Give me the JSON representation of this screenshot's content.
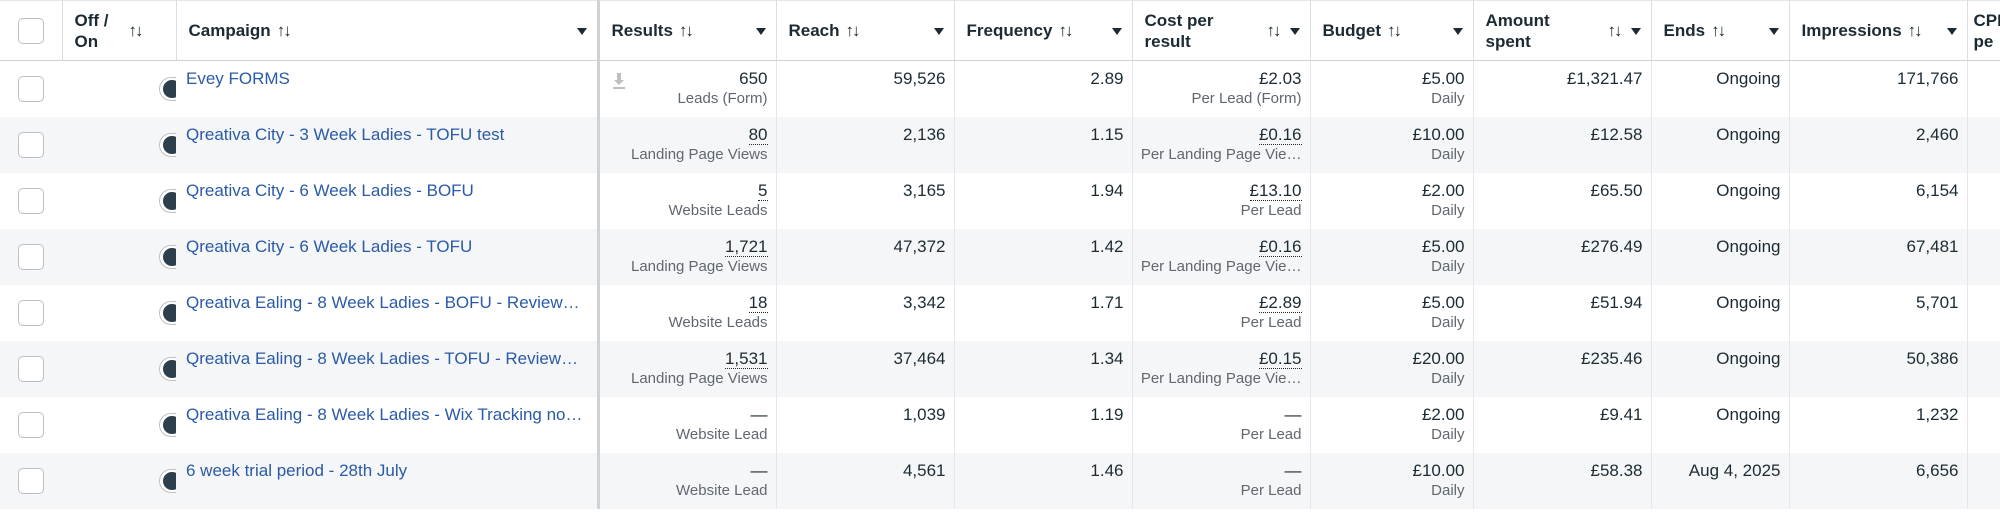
{
  "columns": [
    {
      "key": "check",
      "label": ""
    },
    {
      "key": "toggle",
      "label": "Off / On"
    },
    {
      "key": "campaign",
      "label": "Campaign"
    },
    {
      "key": "results",
      "label": "Results"
    },
    {
      "key": "reach",
      "label": "Reach"
    },
    {
      "key": "frequency",
      "label": "Frequency"
    },
    {
      "key": "cost",
      "label": "Cost per result"
    },
    {
      "key": "budget",
      "label": "Budget"
    },
    {
      "key": "amount",
      "label": "Amount spent"
    },
    {
      "key": "ends",
      "label": "Ends"
    },
    {
      "key": "impressions",
      "label": "Impressions"
    },
    {
      "key": "cpm",
      "label": "CPM pe"
    }
  ],
  "rows": [
    {
      "campaign": "Evey FORMS",
      "results": "650",
      "results_sub": "Leads (Form)",
      "reach": "59,526",
      "frequency": "2.89",
      "cost": "£2.03",
      "cost_sub": "Per Lead (Form)",
      "budget": "£5.00",
      "budget_sub": "Daily",
      "amount": "£1,321.47",
      "ends": "Ongoing",
      "impressions": "171,766"
    },
    {
      "campaign": "Qreativa City - 3 Week Ladies - TOFU test",
      "results": "80",
      "results_sub": "Landing Page Views",
      "reach": "2,136",
      "frequency": "1.15",
      "cost": "£0.16",
      "cost_sub": "Per Landing Page Vie…",
      "budget": "£10.00",
      "budget_sub": "Daily",
      "amount": "£12.58",
      "ends": "Ongoing",
      "impressions": "2,460"
    },
    {
      "campaign": "Qreativa City - 6 Week Ladies - BOFU",
      "results": "5",
      "results_sub": "Website Leads",
      "reach": "3,165",
      "frequency": "1.94",
      "cost": "£13.10",
      "cost_sub": "Per Lead",
      "budget": "£2.00",
      "budget_sub": "Daily",
      "amount": "£65.50",
      "ends": "Ongoing",
      "impressions": "6,154"
    },
    {
      "campaign": "Qreativa City - 6 Week Ladies - TOFU",
      "results": "1,721",
      "results_sub": "Landing Page Views",
      "reach": "47,372",
      "frequency": "1.42",
      "cost": "£0.16",
      "cost_sub": "Per Landing Page Vie…",
      "budget": "£5.00",
      "budget_sub": "Daily",
      "amount": "£276.49",
      "ends": "Ongoing",
      "impressions": "67,481"
    },
    {
      "campaign": "Qreativa Ealing - 8 Week Ladies - BOFU - Review…",
      "results": "18",
      "results_sub": "Website Leads",
      "reach": "3,342",
      "frequency": "1.71",
      "cost": "£2.89",
      "cost_sub": "Per Lead",
      "budget": "£5.00",
      "budget_sub": "Daily",
      "amount": "£51.94",
      "ends": "Ongoing",
      "impressions": "5,701"
    },
    {
      "campaign": "Qreativa Ealing - 8 Week Ladies - TOFU - Review…",
      "results": "1,531",
      "results_sub": "Landing Page Views",
      "reach": "37,464",
      "frequency": "1.34",
      "cost": "£0.15",
      "cost_sub": "Per Landing Page Vie…",
      "budget": "£20.00",
      "budget_sub": "Daily",
      "amount": "£235.46",
      "ends": "Ongoing",
      "impressions": "50,386"
    },
    {
      "campaign": "Qreativa Ealing - 8 Week Ladies - Wix Tracking no…",
      "results": "—",
      "results_sub": "Website Lead",
      "reach": "1,039",
      "frequency": "1.19",
      "cost": "—",
      "cost_sub": "Per Lead",
      "budget": "£2.00",
      "budget_sub": "Daily",
      "amount": "£9.41",
      "ends": "Ongoing",
      "impressions": "1,232"
    },
    {
      "campaign": "6 week trial period - 28th July",
      "results": "—",
      "results_sub": "Website Lead",
      "reach": "4,561",
      "frequency": "1.46",
      "cost": "—",
      "cost_sub": "Per Lead",
      "budget": "£10.00",
      "budget_sub": "Daily",
      "amount": "£58.38",
      "ends": "Aug 4, 2025",
      "impressions": "6,656"
    }
  ]
}
